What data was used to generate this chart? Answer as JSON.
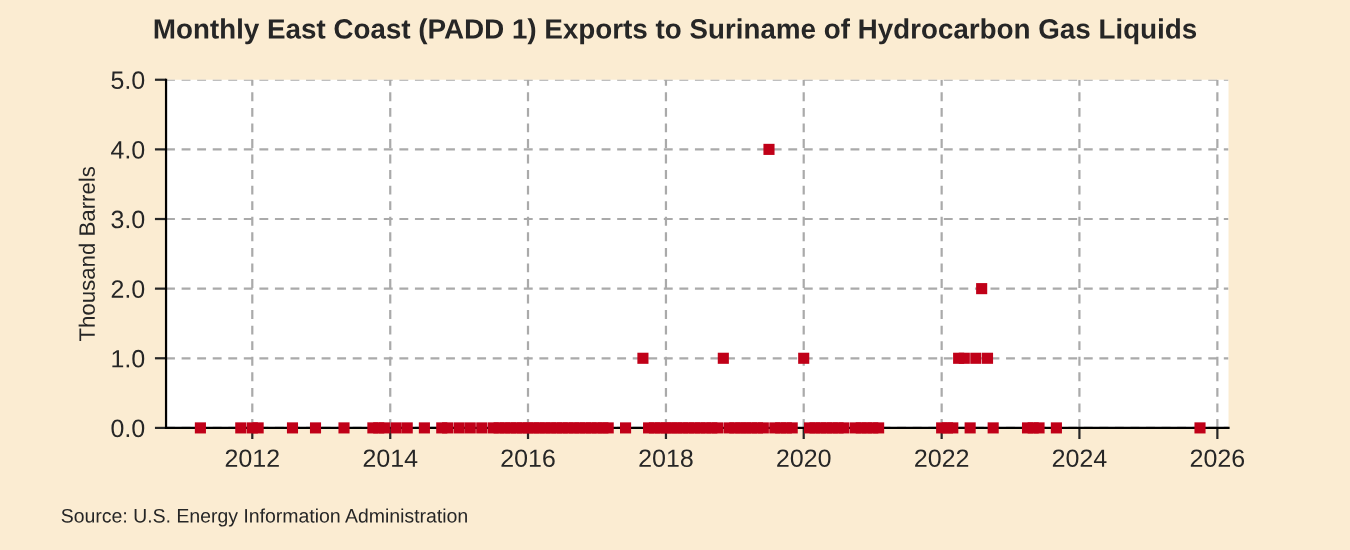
{
  "chart_data": {
    "type": "scatter",
    "title": "Monthly East Coast (PADD 1) Exports to Suriname of Hydrocarbon Gas Liquids",
    "ylabel": "Thousand Barrels",
    "annotations": [
      "Source: U.S. Energy Information Administration"
    ],
    "xlim": [
      "2010-10",
      "2026-03"
    ],
    "xticks": [
      "2012",
      "2014",
      "2016",
      "2018",
      "2020",
      "2022",
      "2024",
      "2026"
    ],
    "ylim": [
      0,
      5
    ],
    "yticks": [
      {
        "value": 0,
        "label": "0.0"
      },
      {
        "value": 1,
        "label": "1.0"
      },
      {
        "value": 2,
        "label": "2.0"
      },
      {
        "value": 3,
        "label": "3.0"
      },
      {
        "value": 4,
        "label": "4.0"
      },
      {
        "value": 5,
        "label": "5.0"
      }
    ],
    "grid": true,
    "marker": "square",
    "series": [
      {
        "color": "#c00018",
        "x": [
          "2011-04",
          "2011-11",
          "2012-01",
          "2012-02",
          "2012-08",
          "2012-12",
          "2013-05",
          "2013-10",
          "2013-11",
          "2013-12",
          "2014-02",
          "2014-04",
          "2014-07",
          "2014-10",
          "2014-11",
          "2015-01",
          "2015-03",
          "2015-05",
          "2015-07",
          "2015-08",
          "2015-09",
          "2015-10",
          "2015-11",
          "2015-12",
          "2016-01",
          "2016-02",
          "2016-03",
          "2016-04",
          "2016-05",
          "2016-06",
          "2016-07",
          "2016-08",
          "2016-09",
          "2016-10",
          "2016-11",
          "2016-12",
          "2017-01",
          "2017-02",
          "2017-03",
          "2017-06",
          "2017-09",
          "2017-10",
          "2017-11",
          "2017-12",
          "2018-01",
          "2018-02",
          "2018-03",
          "2018-04",
          "2018-05",
          "2018-06",
          "2018-07",
          "2018-08",
          "2018-09",
          "2018-10",
          "2018-11",
          "2018-12",
          "2019-01",
          "2019-02",
          "2019-03",
          "2019-04",
          "2019-05",
          "2019-06",
          "2019-07",
          "2019-08",
          "2019-09",
          "2019-10",
          "2019-11",
          "2020-01",
          "2020-02",
          "2020-03",
          "2020-04",
          "2020-05",
          "2020-06",
          "2020-07",
          "2020-08",
          "2020-10",
          "2020-11",
          "2020-12",
          "2021-01",
          "2021-02",
          "2022-01",
          "2022-02",
          "2022-03",
          "2022-04",
          "2022-05",
          "2022-06",
          "2022-07",
          "2022-08",
          "2022-09",
          "2022-10",
          "2023-04",
          "2023-05",
          "2023-06",
          "2023-09",
          "2025-10"
        ],
        "values": [
          0,
          0,
          0,
          0,
          0,
          0,
          0,
          0,
          0,
          0,
          0,
          0,
          0,
          0,
          0,
          0,
          0,
          0,
          0,
          0,
          0,
          0,
          0,
          0,
          0,
          0,
          0,
          0,
          0,
          0,
          0,
          0,
          0,
          0,
          0,
          0,
          0,
          0,
          0,
          0,
          1,
          0,
          0,
          0,
          0,
          0,
          0,
          0,
          0,
          0,
          0,
          0,
          0,
          0,
          1,
          0,
          0,
          0,
          0,
          0,
          0,
          0,
          4,
          0,
          0,
          0,
          0,
          1,
          0,
          0,
          0,
          0,
          0,
          0,
          0,
          0,
          0,
          0,
          0,
          0,
          0,
          0,
          0,
          1,
          1,
          0,
          1,
          2,
          1,
          0,
          0,
          0,
          0,
          0,
          0
        ]
      }
    ]
  }
}
